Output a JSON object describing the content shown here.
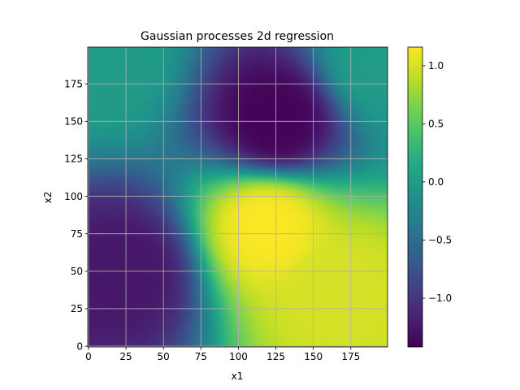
{
  "chart_data": {
    "type": "heatmap",
    "title": "Gaussian processes 2d regression",
    "xlabel": "x1",
    "ylabel": "x2",
    "xlim": [
      0,
      199
    ],
    "ylim": [
      0,
      199
    ],
    "x_ticks": [
      0,
      25,
      50,
      75,
      100,
      125,
      150,
      175
    ],
    "y_ticks": [
      0,
      25,
      50,
      75,
      100,
      125,
      150,
      175
    ],
    "grid": true,
    "colormap": "viridis",
    "colorbar": {
      "range": [
        -1.42,
        1.16
      ],
      "ticks": [
        1.0,
        0.5,
        0.0,
        -0.5,
        -1.0
      ],
      "tick_labels": [
        "1.0",
        "0.5",
        "0.0",
        "−0.5",
        "−1.0"
      ]
    },
    "features": [
      {
        "x": 120,
        "y": 80,
        "value": 1.15,
        "kind": "maximum"
      },
      {
        "x": 165,
        "y": 35,
        "value": 1.0,
        "kind": "maximum"
      },
      {
        "x": 125,
        "y": 150,
        "value": -1.4,
        "kind": "minimum"
      },
      {
        "x": 25,
        "y": 50,
        "value": -1.25,
        "kind": "minimum"
      },
      {
        "x": 10,
        "y": 190,
        "value": 0.0,
        "kind": "level"
      },
      {
        "x": 195,
        "y": 190,
        "value": 0.0,
        "kind": "level"
      }
    ]
  }
}
